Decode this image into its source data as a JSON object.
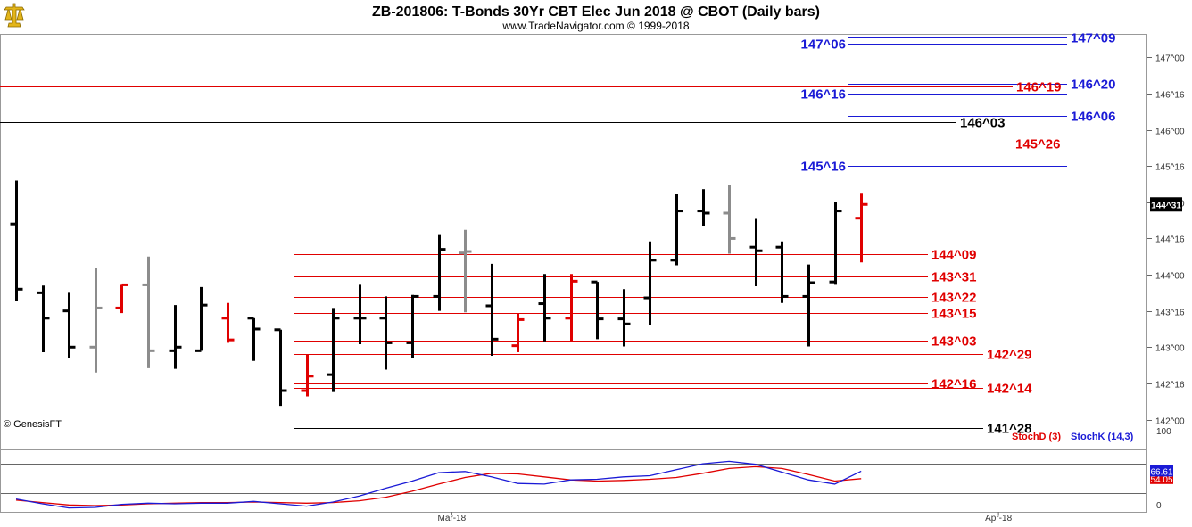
{
  "header": {
    "title": "ZB-201806:  T-Bonds 30Yr CBT Elec Jun 2018 @ CBOT  (Daily bars)",
    "subtitle": "www.TradeNavigator.com © 1999-2018",
    "logo_icon": "yellow-scale-logo-icon"
  },
  "copyright": "© GenesisFT",
  "colors": {
    "up_bar": "#000000",
    "down_bar_black": "#000000",
    "gray_bar": "#8c8c8c",
    "red_bar": "#e00000",
    "blue_level": "#1a1ad6",
    "red_level": "#e00000",
    "black_level": "#000000",
    "stochK": "#1a1ad6",
    "stochD": "#e00000"
  },
  "chart_data": [
    {
      "type": "bar",
      "subtype": "ohlc",
      "title": "ZB-201806:  T-Bonds 30Yr CBT Elec Jun 2018 @ CBOT  (Daily bars)",
      "y_unit": "price (whole + 32nds)",
      "ylim": [
        141.6,
        147.3
      ],
      "y_ticks": [
        {
          "label": "142^00",
          "value": 142.0
        },
        {
          "label": "142^16",
          "value": 142.5
        },
        {
          "label": "143^00",
          "value": 143.0
        },
        {
          "label": "143^16",
          "value": 143.5
        },
        {
          "label": "144^00",
          "value": 144.0
        },
        {
          "label": "144^16",
          "value": 144.5
        },
        {
          "label": "145^00",
          "value": 145.0
        },
        {
          "label": "145^16",
          "value": 145.5
        },
        {
          "label": "146^00",
          "value": 146.0
        },
        {
          "label": "146^16",
          "value": 146.5
        },
        {
          "label": "147^00",
          "value": 147.0
        }
      ],
      "x_ticks": [
        {
          "label": "Mar-18",
          "bar": 16.5
        },
        {
          "label": "Apr-18",
          "bar": 37.2
        }
      ],
      "last_price_label": "144^31",
      "last_price": 144.97,
      "bars": [
        {
          "o": 144.7,
          "h": 145.3,
          "l": 143.64,
          "c": 143.8,
          "color": "black"
        },
        {
          "o": 143.75,
          "h": 143.85,
          "l": 142.93,
          "c": 143.4,
          "color": "black"
        },
        {
          "o": 143.5,
          "h": 143.75,
          "l": 142.85,
          "c": 143.0,
          "color": "black"
        },
        {
          "o": 143.0,
          "h": 144.09,
          "l": 142.65,
          "c": 143.54,
          "color": "gray"
        },
        {
          "o": 143.54,
          "h": 143.86,
          "l": 143.47,
          "c": 143.86,
          "color": "red"
        },
        {
          "o": 143.86,
          "h": 144.25,
          "l": 142.71,
          "c": 142.95,
          "color": "gray"
        },
        {
          "o": 142.95,
          "h": 143.58,
          "l": 142.7,
          "c": 143.0,
          "color": "black"
        },
        {
          "o": 142.95,
          "h": 143.83,
          "l": 142.95,
          "c": 143.58,
          "color": "black"
        },
        {
          "o": 143.4,
          "h": 143.61,
          "l": 143.06,
          "c": 143.1,
          "color": "red"
        },
        {
          "o": 143.4,
          "h": 143.4,
          "l": 142.81,
          "c": 143.25,
          "color": "black"
        },
        {
          "o": 143.24,
          "h": 143.24,
          "l": 142.19,
          "c": 142.4,
          "color": "black"
        },
        {
          "o": 142.4,
          "h": 142.9,
          "l": 142.32,
          "c": 142.6,
          "color": "red"
        },
        {
          "o": 142.62,
          "h": 143.54,
          "l": 142.38,
          "c": 143.4,
          "color": "black"
        },
        {
          "o": 143.4,
          "h": 143.86,
          "l": 143.04,
          "c": 143.4,
          "color": "black"
        },
        {
          "o": 143.4,
          "h": 143.7,
          "l": 142.69,
          "c": 143.06,
          "color": "black"
        },
        {
          "o": 143.06,
          "h": 143.72,
          "l": 142.85,
          "c": 143.7,
          "color": "black"
        },
        {
          "o": 143.7,
          "h": 144.56,
          "l": 143.5,
          "c": 144.35,
          "color": "black"
        },
        {
          "o": 144.3,
          "h": 144.62,
          "l": 143.48,
          "c": 144.32,
          "color": "gray"
        },
        {
          "o": 143.57,
          "h": 144.15,
          "l": 142.88,
          "c": 143.11,
          "color": "black"
        },
        {
          "o": 143.02,
          "h": 143.47,
          "l": 142.93,
          "c": 143.38,
          "color": "red"
        },
        {
          "o": 143.6,
          "h": 144.01,
          "l": 143.08,
          "c": 143.4,
          "color": "black"
        },
        {
          "o": 143.4,
          "h": 144.01,
          "l": 143.07,
          "c": 143.91,
          "color": "red"
        },
        {
          "o": 143.9,
          "h": 143.9,
          "l": 143.11,
          "c": 143.39,
          "color": "black"
        },
        {
          "o": 143.39,
          "h": 143.8,
          "l": 143.01,
          "c": 143.32,
          "color": "black"
        },
        {
          "o": 143.68,
          "h": 144.46,
          "l": 143.3,
          "c": 144.2,
          "color": "black"
        },
        {
          "o": 144.2,
          "h": 145.12,
          "l": 144.13,
          "c": 144.88,
          "color": "black"
        },
        {
          "o": 144.88,
          "h": 145.18,
          "l": 144.67,
          "c": 144.85,
          "color": "black"
        },
        {
          "o": 144.85,
          "h": 145.24,
          "l": 144.29,
          "c": 144.5,
          "color": "gray"
        },
        {
          "o": 144.38,
          "h": 144.77,
          "l": 143.84,
          "c": 144.33,
          "color": "black"
        },
        {
          "o": 144.38,
          "h": 144.46,
          "l": 143.61,
          "c": 143.7,
          "color": "black"
        },
        {
          "o": 143.7,
          "h": 144.14,
          "l": 143.01,
          "c": 143.89,
          "color": "black"
        },
        {
          "o": 143.9,
          "h": 145.0,
          "l": 143.86,
          "c": 144.88,
          "color": "black"
        },
        {
          "o": 144.78,
          "h": 145.13,
          "l": 144.17,
          "c": 144.97,
          "color": "red"
        }
      ],
      "levels": [
        {
          "label": "147^09",
          "color": "blue",
          "value": 147.28,
          "side": "right"
        },
        {
          "label": "147^06",
          "color": "blue",
          "value": 147.19,
          "side": "left"
        },
        {
          "label": "146^20",
          "color": "blue",
          "value": 146.63,
          "side": "right"
        },
        {
          "label": "146^19",
          "color": "red",
          "value": 146.6,
          "side": "mid"
        },
        {
          "label": "146^16",
          "color": "blue",
          "value": 146.5,
          "side": "left"
        },
        {
          "label": "146^06",
          "color": "blue",
          "value": 146.19,
          "side": "right"
        },
        {
          "label": "146^03",
          "color": "black",
          "value": 146.1,
          "side": "mid"
        },
        {
          "label": "145^26",
          "color": "red",
          "value": 145.81,
          "side": "right"
        },
        {
          "label": "145^16",
          "color": "blue",
          "value": 145.5,
          "side": "left"
        },
        {
          "label": "144^09",
          "color": "red",
          "value": 144.28,
          "side": "mid"
        },
        {
          "label": "143^31",
          "color": "red",
          "value": 143.97,
          "side": "mid"
        },
        {
          "label": "143^22",
          "color": "red",
          "value": 143.69,
          "side": "mid"
        },
        {
          "label": "143^15",
          "color": "red",
          "value": 143.47,
          "side": "mid"
        },
        {
          "label": "143^03",
          "color": "red",
          "value": 143.09,
          "side": "mid"
        },
        {
          "label": "142^29",
          "color": "red",
          "value": 142.91,
          "side": "right"
        },
        {
          "label": "142^16",
          "color": "red",
          "value": 142.5,
          "side": "mid"
        },
        {
          "label": "142^14",
          "color": "red",
          "value": 142.44,
          "side": "right"
        },
        {
          "label": "141^28",
          "color": "black",
          "value": 141.88,
          "side": "right"
        }
      ]
    },
    {
      "type": "line",
      "title": "",
      "ylim": [
        0,
        100
      ],
      "y_ticks": [
        {
          "label": "0",
          "value": 0
        },
        {
          "label": "100",
          "value": 100
        }
      ],
      "series": [
        {
          "name": "StochD (3)",
          "color": "red",
          "last_label": "54.05",
          "values": [
            18,
            14,
            10,
            9,
            10,
            12,
            13,
            14,
            14,
            15,
            14,
            13,
            14,
            17,
            23,
            33,
            45,
            56,
            63,
            62,
            57,
            52,
            50,
            51,
            53,
            56,
            63,
            71,
            74,
            71,
            61,
            50,
            54.05
          ]
        },
        {
          "name": "StochK (14,3)",
          "color": "blue",
          "last_label": "66.61",
          "values": [
            20,
            12,
            5,
            6,
            11,
            13,
            12,
            13,
            13,
            16,
            12,
            8,
            15,
            25,
            38,
            50,
            64,
            66,
            57,
            46,
            45,
            52,
            53,
            57,
            59,
            69,
            79,
            83,
            78,
            65,
            52,
            45,
            66.61
          ]
        }
      ]
    }
  ]
}
